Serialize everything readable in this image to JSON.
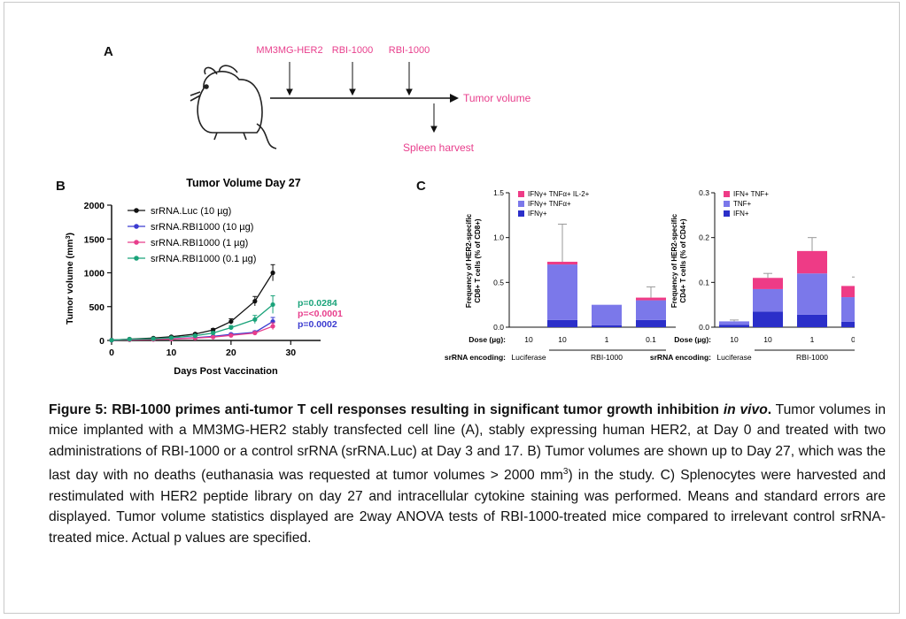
{
  "panelA": {
    "label": "A",
    "events": [
      "MM3MG-HER2",
      "RBI-1000",
      "RBI-1000"
    ],
    "tumor_volume": "Tumor volume",
    "spleen_harvest": "Spleen harvest"
  },
  "panelB": {
    "label": "B",
    "title": "Tumor Volume Day 27",
    "ylabel_main": "Tumor volume (mm",
    "ylabel_sup": "3",
    "ylabel_end": ")",
    "xlabel": "Days Post Vaccination",
    "yticks": [
      "0",
      "500",
      "1000",
      "1500",
      "2000"
    ],
    "xticks": [
      "0",
      "10",
      "20",
      "30"
    ],
    "legend": [
      "srRNA.Luc (10 µg)",
      "srRNA.RBI1000 (10 µg)",
      "srRNA.RBI1000 (1 µg)",
      "srRNA.RBI1000 (0.1 µg)"
    ],
    "pvalues": [
      {
        "text": "p=0.0284",
        "color": "#1aa37a"
      },
      {
        "text": "p=<0.0001",
        "color": "#e83e8c"
      },
      {
        "text": "p=0.0002",
        "color": "#3b3bd0"
      }
    ]
  },
  "panelC": {
    "label": "C",
    "cd8": {
      "ylabel1": "Frequency of HER2-specific",
      "ylabel2": "CD8+ T cells (% of CD8+)",
      "yticks": [
        "0.0",
        "0.5",
        "1.0",
        "1.5"
      ],
      "legend": [
        "IFNγ+ TNFα+ IL-2+",
        "IFNγ+ TNFα+",
        "IFNγ+"
      ]
    },
    "cd4": {
      "ylabel1": "Frequency of HER2-specific",
      "ylabel2": "CD4+ T cells (% of CD4+)",
      "yticks": [
        "0.0",
        "0.1",
        "0.2",
        "0.3"
      ],
      "legend": [
        "IFN+ TNF+",
        "TNF+",
        "IFN+"
      ]
    },
    "dose_label": "Dose (µg):",
    "doses": [
      "10",
      "10",
      "1",
      "0.1"
    ],
    "encoding_label": "srRNA encoding:",
    "encoding_groups": [
      "Luciferase",
      "RBI-1000"
    ]
  },
  "colors": {
    "luc": "#111111",
    "rbi10": "#3b3bd0",
    "rbi1": "#e83e8c",
    "rbi01": "#1aa37a",
    "bar_dark": "#2b2fc9",
    "bar_mid": "#7b78ea",
    "bar_top": "#ee3b86"
  },
  "chart_data": [
    {
      "type": "line",
      "title": "Tumor Volume Day 27",
      "xlabel": "Days Post Vaccination",
      "ylabel": "Tumor volume (mm3)",
      "xlim": [
        0,
        35
      ],
      "ylim": [
        0,
        2000
      ],
      "x": [
        0,
        3,
        7,
        10,
        14,
        17,
        20,
        24,
        27
      ],
      "series": [
        {
          "name": "srRNA.Luc (10 µg)",
          "values": [
            5,
            20,
            35,
            55,
            95,
            155,
            280,
            580,
            1000
          ],
          "err": [
            2,
            5,
            8,
            10,
            15,
            20,
            40,
            70,
            120
          ]
        },
        {
          "name": "srRNA.RBI1000 (10 µg)",
          "values": [
            5,
            12,
            18,
            25,
            40,
            60,
            90,
            120,
            280
          ],
          "err": [
            2,
            3,
            4,
            5,
            8,
            10,
            15,
            20,
            60
          ]
        },
        {
          "name": "srRNA.RBI1000 (1 µg)",
          "values": [
            5,
            10,
            15,
            22,
            35,
            50,
            75,
            110,
            210
          ],
          "err": [
            2,
            3,
            4,
            5,
            7,
            8,
            12,
            20,
            50
          ]
        },
        {
          "name": "srRNA.RBI1000 (0.1 µg)",
          "values": [
            5,
            18,
            25,
            40,
            70,
            110,
            190,
            310,
            530
          ],
          "err": [
            2,
            4,
            6,
            8,
            12,
            20,
            30,
            60,
            130
          ]
        }
      ]
    },
    {
      "type": "bar",
      "stacked": true,
      "ylabel": "Frequency of HER2-specific CD8+ T cells (% of CD8+)",
      "ylim": [
        0,
        1.5
      ],
      "categories": [
        "10",
        "10",
        "1",
        "0.1"
      ],
      "series": [
        {
          "name": "IFNγ+",
          "values": [
            0.0,
            0.08,
            0.02,
            0.08
          ]
        },
        {
          "name": "IFNγ+ TNFα+",
          "values": [
            0.0,
            0.62,
            0.23,
            0.22
          ]
        },
        {
          "name": "IFNγ+ TNFα+ IL-2+",
          "values": [
            0.0,
            0.03,
            0.0,
            0.03
          ]
        }
      ],
      "err": [
        0.0,
        0.42,
        0.0,
        0.12
      ]
    },
    {
      "type": "bar",
      "stacked": true,
      "ylabel": "Frequency of HER2-specific CD4+ T cells (% of CD4+)",
      "ylim": [
        0,
        0.3
      ],
      "categories": [
        "10",
        "10",
        "1",
        "0.1"
      ],
      "series": [
        {
          "name": "IFN+",
          "values": [
            0.005,
            0.035,
            0.028,
            0.012
          ]
        },
        {
          "name": "TNF+",
          "values": [
            0.008,
            0.05,
            0.092,
            0.055
          ]
        },
        {
          "name": "IFN+ TNF+",
          "values": [
            0.0,
            0.025,
            0.05,
            0.025
          ]
        }
      ],
      "err": [
        0.003,
        0.01,
        0.03,
        0.02
      ]
    }
  ],
  "caption": {
    "lead": "Figure 5: RBI-1000 primes anti-tumor T cell responses resulting in significant tumor growth inhibition ",
    "lead_italic": "in vivo",
    "lead_end": ".",
    "body1": " Tumor volumes in mice implanted with a MM3MG-HER2 stably transfected cell line (A), stably expressing human HER2, at Day 0 and treated with two administrations of RBI-1000 or a control srRNA (srRNA.Luc) at Day 3 and 17. B) Tumor volumes are shown up to Day 27, which was the last day with no deaths (euthanasia was requested at tumor volumes > 2000 mm",
    "sup": "3",
    "body2": ") in the study. C) Splenocytes were harvested and restimulated with HER2 peptide library on day 27 and intracellular cytokine staining was performed. Means and standard errors are displayed. Tumor volume statistics displayed are 2way ANOVA tests of RBI-1000-treated mice compared to irrelevant control srRNA-treated mice. Actual p values are specified."
  }
}
